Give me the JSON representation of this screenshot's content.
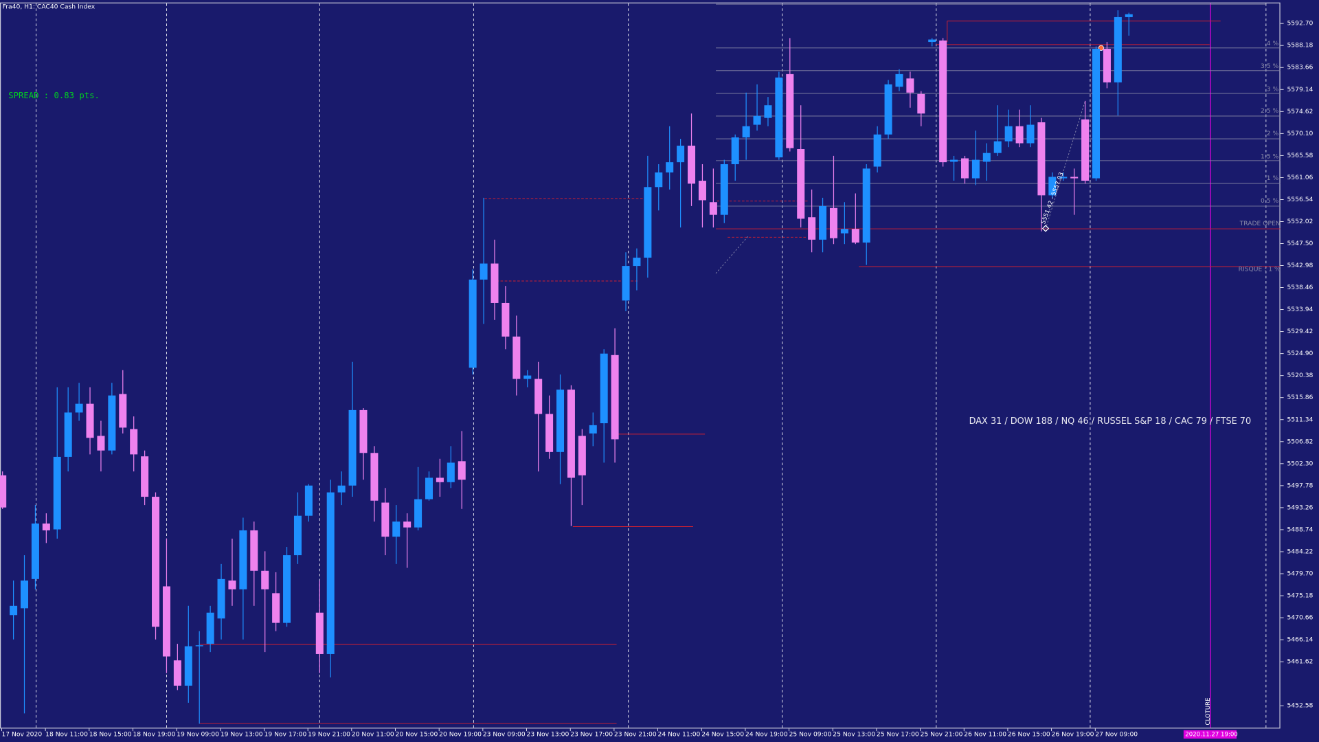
{
  "chart_data": {
    "type": "candlestick",
    "title": "Fra40, H1:  CAC40 Cash Index",
    "up_color": "#1e90ff",
    "down_color": "#ee82ee",
    "ylim": [
      5447.9,
      5597.0
    ],
    "yticks": [
      {
        "value": 5592.7,
        "label": "5592.70"
      },
      {
        "value": 5588.18,
        "label": "5588.18"
      },
      {
        "value": 5583.66,
        "label": "5583.66"
      },
      {
        "value": 5579.14,
        "label": "5579.14"
      },
      {
        "value": 5574.62,
        "label": "5574.62"
      },
      {
        "value": 5570.1,
        "label": "5570.10"
      },
      {
        "value": 5565.58,
        "label": "5565.58"
      },
      {
        "value": 5561.06,
        "label": "5561.06"
      },
      {
        "value": 5556.54,
        "label": "5556.54"
      },
      {
        "value": 5552.02,
        "label": "5552.02"
      },
      {
        "value": 5547.5,
        "label": "5547.50"
      },
      {
        "value": 5542.98,
        "label": "5542.98"
      },
      {
        "value": 5538.46,
        "label": "5538.46"
      },
      {
        "value": 5533.94,
        "label": "5533.94"
      },
      {
        "value": 5529.42,
        "label": "5529.42"
      },
      {
        "value": 5524.9,
        "label": "5524.90"
      },
      {
        "value": 5520.38,
        "label": "5520.38"
      },
      {
        "value": 5515.86,
        "label": "5515.86"
      },
      {
        "value": 5511.34,
        "label": "5511.34"
      },
      {
        "value": 5506.82,
        "label": "5506.82"
      },
      {
        "value": 5502.3,
        "label": "5502.30"
      },
      {
        "value": 5497.78,
        "label": "5497.78"
      },
      {
        "value": 5493.26,
        "label": "5493.26"
      },
      {
        "value": 5488.74,
        "label": "5488.74"
      },
      {
        "value": 5484.22,
        "label": "5484.22"
      },
      {
        "value": 5479.7,
        "label": "5479.70"
      },
      {
        "value": 5475.18,
        "label": "5475.18"
      },
      {
        "value": 5470.66,
        "label": "5470.66"
      },
      {
        "value": 5466.14,
        "label": "5466.14"
      },
      {
        "value": 5461.62,
        "label": "5461.62"
      },
      {
        "value": 5452.58,
        "label": "5452.58"
      }
    ],
    "categories": [
      "17 Nov 2020",
      null,
      null,
      null,
      "18 Nov 11:00",
      null,
      null,
      null,
      "18 Nov 15:00",
      null,
      null,
      null,
      "18 Nov 19:00",
      null,
      null,
      null,
      "19 Nov 09:00",
      null,
      null,
      null,
      "19 Nov 13:00",
      null,
      null,
      null,
      "19 Nov 17:00",
      null,
      null,
      null,
      "19 Nov 21:00",
      null,
      null,
      null,
      "20 Nov 11:00",
      null,
      null,
      null,
      "20 Nov 15:00",
      null,
      null,
      null,
      "20 Nov 19:00",
      null,
      null,
      null,
      "23 Nov 09:00",
      null,
      null,
      null,
      "23 Nov 13:00",
      null,
      null,
      null,
      "23 Nov 17:00",
      null,
      null,
      null,
      "23 Nov 21:00",
      null,
      null,
      null,
      "24 Nov 11:00",
      null,
      null,
      null,
      "24 Nov 15:00",
      null,
      null,
      null,
      "24 Nov 19:00",
      null,
      null,
      null,
      "25 Nov 09:00",
      null,
      null,
      null,
      "25 Nov 13:00",
      null,
      null,
      null,
      "25 Nov 17:00",
      null,
      null,
      null,
      "25 Nov 21:00",
      null,
      null,
      null,
      "26 Nov 11:00",
      null,
      null,
      null,
      "26 Nov 15:00",
      null,
      null,
      null,
      "26 Nov 19:00",
      null,
      null,
      null,
      "27 Nov 09:00",
      null,
      null,
      null
    ],
    "open": [
      5499.9,
      5471.2,
      5472.6,
      5478.6,
      5490.0,
      5488.8,
      5503.7,
      5512.8,
      5514.6,
      5508.0,
      5505.0,
      5516.6,
      5509.4,
      5503.8,
      5495.5,
      5477.1,
      5461.9,
      5456.7,
      5464.8,
      5465.3,
      5470.5,
      5478.3,
      5476.5,
      5488.6,
      5480.3,
      5475.7,
      5469.6,
      5483.5,
      5491.6,
      5471.7,
      5463.2,
      5496.4,
      5497.8,
      5513.3,
      5504.5,
      5494.3,
      5487.3,
      5490.4,
      5489.2,
      5495.0,
      5499.4,
      5498.5,
      5502.8,
      5522.0,
      5540.1,
      5543.4,
      5535.3,
      5528.4,
      5519.7,
      5519.7,
      5512.5,
      5504.7,
      5517.5,
      5508.0,
      5508.5,
      5510.6,
      5524.6,
      5535.8,
      5542.9,
      5544.6,
      5559.1,
      5562.1,
      5564.2,
      5567.6,
      5560.4,
      5556.0,
      5553.4,
      5563.8,
      5569.3,
      5571.9,
      5573.3,
      5565.2,
      5582.3,
      5566.9,
      5552.9,
      5548.3,
      5554.8,
      5549.6,
      5550.5,
      5547.7,
      5563.3,
      5569.9,
      5579.7,
      5581.4,
      5578.2,
      5588.9,
      5589.2,
      5564.3,
      5565.0,
      5560.9,
      5564.3,
      5566.1,
      5568.5,
      5571.6,
      5568.1,
      5572.4,
      5557.4,
      5560.9,
      5561.2,
      5573.0,
      5560.9,
      5587.5,
      5580.6,
      5594.0
    ],
    "high": [
      5500.7,
      5478.3,
      5483.5,
      5493.8,
      5492.1,
      5518.0,
      5518.0,
      5518.9,
      5518.0,
      5511.1,
      5518.9,
      5521.5,
      5512.0,
      5505.0,
      5496.4,
      5486.9,
      5465.3,
      5473.1,
      5467.9,
      5473.1,
      5481.7,
      5486.9,
      5491.2,
      5490.4,
      5484.3,
      5480.0,
      5485.2,
      5496.4,
      5498.1,
      5478.3,
      5499.0,
      5500.7,
      5523.2,
      5513.7,
      5505.9,
      5497.3,
      5493.8,
      5492.1,
      5501.6,
      5500.7,
      5503.3,
      5505.9,
      5509.0,
      5542.2,
      5556.9,
      5548.3,
      5538.8,
      5532.7,
      5521.5,
      5523.2,
      5516.3,
      5520.6,
      5518.4,
      5509.4,
      5512.8,
      5525.8,
      5530.1,
      5545.7,
      5546.5,
      5565.5,
      5563.8,
      5571.6,
      5569.0,
      5574.2,
      5563.8,
      5562.9,
      5564.7,
      5569.9,
      5578.5,
      5580.2,
      5577.6,
      5582.8,
      5589.7,
      5575.9,
      5558.6,
      5556.9,
      5565.5,
      5556.0,
      5557.8,
      5563.8,
      5571.6,
      5581.1,
      5583.3,
      5582.8,
      5578.8,
      5589.7,
      5589.7,
      5565.5,
      5565.5,
      5570.7,
      5568.1,
      5575.9,
      5575.0,
      5575.0,
      5575.9,
      5573.3,
      5562.1,
      5562.1,
      5562.9,
      5576.8,
      5588.0,
      5588.9,
      5595.4,
      5594.9
    ],
    "low": [
      5493.0,
      5466.2,
      5451.0,
      5476.5,
      5486.0,
      5486.9,
      5500.7,
      5511.1,
      5504.2,
      5500.7,
      5504.2,
      5508.5,
      5500.7,
      5493.8,
      5466.2,
      5459.3,
      5455.8,
      5453.2,
      5448.9,
      5463.6,
      5466.2,
      5473.1,
      5466.2,
      5473.1,
      5463.6,
      5467.9,
      5468.8,
      5481.7,
      5490.4,
      5459.3,
      5458.4,
      5493.8,
      5495.5,
      5499.0,
      5490.4,
      5483.5,
      5481.7,
      5480.9,
      5488.6,
      5494.7,
      5495.5,
      5497.3,
      5493.0,
      5520.6,
      5531.0,
      5531.8,
      5525.8,
      5516.3,
      5518.0,
      5500.7,
      5503.3,
      5498.1,
      5489.5,
      5493.8,
      5505.9,
      5502.5,
      5502.5,
      5533.6,
      5537.9,
      5540.5,
      5554.3,
      5558.6,
      5550.8,
      5555.2,
      5550.8,
      5550.8,
      5551.7,
      5560.4,
      5564.7,
      5570.7,
      5571.6,
      5564.7,
      5566.4,
      5550.8,
      5545.7,
      5545.7,
      5547.4,
      5547.4,
      5547.4,
      5543.1,
      5562.1,
      5569.0,
      5578.8,
      5575.4,
      5571.6,
      5588.0,
      5563.3,
      5560.4,
      5559.8,
      5559.5,
      5560.4,
      5565.5,
      5567.3,
      5567.3,
      5567.3,
      5550.0,
      5556.9,
      5560.4,
      5553.4,
      5559.8,
      5560.4,
      5579.4,
      5573.8,
      5590.2
    ],
    "close": [
      5493.3,
      5473.1,
      5478.3,
      5490.0,
      5488.6,
      5503.7,
      5512.8,
      5514.6,
      5507.6,
      5505.0,
      5516.3,
      5509.7,
      5504.2,
      5495.5,
      5468.8,
      5462.7,
      5456.7,
      5464.8,
      5465.0,
      5471.7,
      5478.6,
      5476.5,
      5488.6,
      5480.3,
      5476.5,
      5469.6,
      5483.5,
      5491.6,
      5497.8,
      5463.2,
      5496.4,
      5497.8,
      5513.3,
      5504.5,
      5494.7,
      5487.3,
      5490.4,
      5489.2,
      5495.0,
      5499.4,
      5498.5,
      5502.5,
      5499.0,
      5540.1,
      5543.4,
      5535.3,
      5528.4,
      5519.7,
      5520.4,
      5512.5,
      5504.7,
      5517.5,
      5499.4,
      5499.9,
      5510.2,
      5524.9,
      5507.3,
      5542.9,
      5544.6,
      5559.1,
      5562.1,
      5564.2,
      5567.6,
      5559.8,
      5556.4,
      5553.4,
      5563.8,
      5569.3,
      5571.6,
      5573.7,
      5575.9,
      5581.6,
      5567.1,
      5552.6,
      5548.3,
      5555.2,
      5548.6,
      5550.5,
      5547.7,
      5562.9,
      5569.9,
      5580.2,
      5582.3,
      5578.5,
      5574.2,
      5589.4,
      5564.2,
      5564.7,
      5560.9,
      5564.7,
      5566.1,
      5568.5,
      5571.6,
      5568.1,
      5571.9,
      5557.4,
      5561.2,
      5561.2,
      5560.9,
      5560.4,
      5587.5,
      5580.6,
      5594.0,
      5594.6
    ],
    "annotations": [
      "SPREAD : 0.83 pts.",
      "DAX 31 / DOW 188 / NQ 46 / RUSSEL S&P 18 / CAC 79 / FTSE 70",
      "TRADE OPEN",
      "RISQUE : 1 %",
      "CLOTURE",
      "2020.11.27 19:00",
      "5551.42 - 5557.03"
    ],
    "level_labels": [
      "4 %",
      "3.5 %",
      "3 %",
      "2.5 %",
      "2 %",
      "1.5 %",
      "1 %",
      "0.5 %"
    ]
  }
}
